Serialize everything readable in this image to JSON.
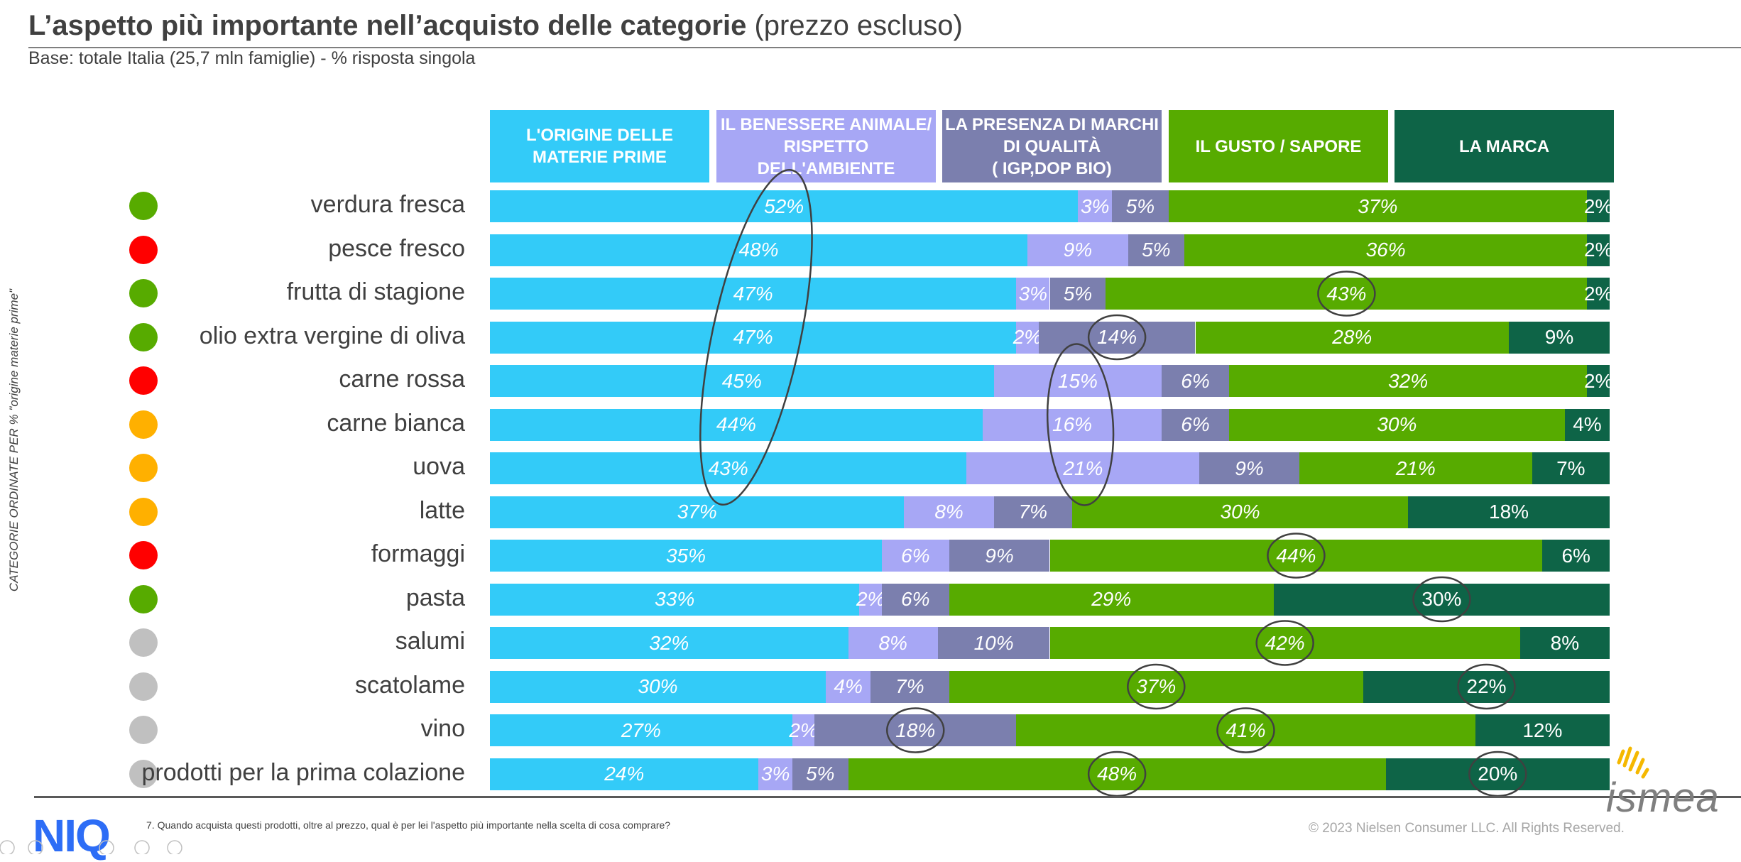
{
  "title_bold": "L’aspetto più importante nell’acquisto delle categorie",
  "title_normal": "(prezzo escluso)",
  "subtitle": "Base: totale Italia (25,7 mln famiglie)  - % risposta singola",
  "vertical_label": "CATEGORIE ORDINATE PER % \"origine materie prime\"",
  "question": "7. Quando acquista questi prodotti, oltre al prezzo, qual è per lei l'aspetto più importante nella scelta di cosa comprare?",
  "copyright": "© 2023 Nielsen Consumer LLC. All Rights Reserved.",
  "logo_left": "NIQ",
  "logo_right": "ismea",
  "colors": {
    "origine": "#33cbf8",
    "benessere": "#a7a7f5",
    "marchi": "#7b7fae",
    "gusto": "#57ab00",
    "marca": "#0e6447",
    "dot_green": "#57ab00",
    "dot_red": "#ff0000",
    "dot_orange": "#ffb000",
    "dot_gray": "#c0c0c0"
  },
  "chart_data": {
    "type": "bar",
    "stacked": true,
    "orientation": "horizontal",
    "unit": "%",
    "series": [
      {
        "name": "L'ORIGINE DELLE MATERIE PRIME",
        "color_key": "origine",
        "values": [
          52,
          48,
          47,
          47,
          45,
          44,
          43,
          37,
          35,
          33,
          32,
          30,
          27,
          24
        ]
      },
      {
        "name": "IL BENESSERE ANIMALE/ RISPETTO DELL'AMBIENTE",
        "color_key": "benessere",
        "values": [
          3,
          9,
          3,
          2,
          15,
          16,
          21,
          8,
          6,
          2,
          8,
          4,
          2,
          3
        ]
      },
      {
        "name": "LA PRESENZA DI MARCHI DI QUALITÀ ( IGP,DOP BIO)",
        "color_key": "marchi",
        "values": [
          5,
          5,
          5,
          14,
          6,
          6,
          9,
          7,
          9,
          6,
          10,
          7,
          18,
          5
        ]
      },
      {
        "name": "IL GUSTO / SAPORE",
        "color_key": "gusto",
        "values": [
          37,
          36,
          43,
          28,
          32,
          30,
          21,
          30,
          44,
          29,
          42,
          37,
          41,
          48
        ]
      },
      {
        "name": "LA MARCA",
        "color_key": "marca",
        "values": [
          2,
          2,
          2,
          9,
          2,
          4,
          7,
          18,
          6,
          30,
          8,
          22,
          12,
          20
        ]
      }
    ],
    "series_labels_display": [
      [
        "L'ORIGINE DELLE",
        "MATERIE PRIME"
      ],
      [
        "IL BENESSERE ANIMALE/",
        "RISPETTO",
        "DELL'AMBIENTE"
      ],
      [
        "LA PRESENZA DI MARCHI",
        "DI QUALITÀ",
        "( IGP,DOP BIO)"
      ],
      [
        "IL GUSTO / SAPORE"
      ],
      [
        "LA MARCA"
      ]
    ],
    "categories": [
      "verdura fresca",
      "pesce fresco",
      "frutta di stagione",
      "olio extra vergine di oliva",
      "carne rossa",
      "carne bianca",
      "uova",
      "latte",
      "formaggi",
      "pasta",
      "salumi",
      "scatolame",
      "vino",
      "prodotti per la prima colazione"
    ],
    "category_status": [
      "green",
      "red",
      "green",
      "green",
      "red",
      "orange",
      "orange",
      "orange",
      "red",
      "green",
      "gray",
      "gray",
      "gray",
      "gray"
    ],
    "highlight_ellipses": [
      {
        "series": 0,
        "from": 0,
        "to": 6
      },
      {
        "series": 1,
        "from": 4,
        "to": 6
      },
      {
        "series": 3,
        "row": 2
      },
      {
        "series": 2,
        "row": 3
      },
      {
        "series": 3,
        "row": 8
      },
      {
        "series": 4,
        "row": 9
      },
      {
        "series": 3,
        "row": 10
      },
      {
        "series": 3,
        "row": 11
      },
      {
        "series": 4,
        "row": 11
      },
      {
        "series": 2,
        "row": 12
      },
      {
        "series": 3,
        "row": 12
      },
      {
        "series": 3,
        "row": 13
      },
      {
        "series": 4,
        "row": 13
      }
    ],
    "xlim": [
      0,
      100
    ]
  }
}
